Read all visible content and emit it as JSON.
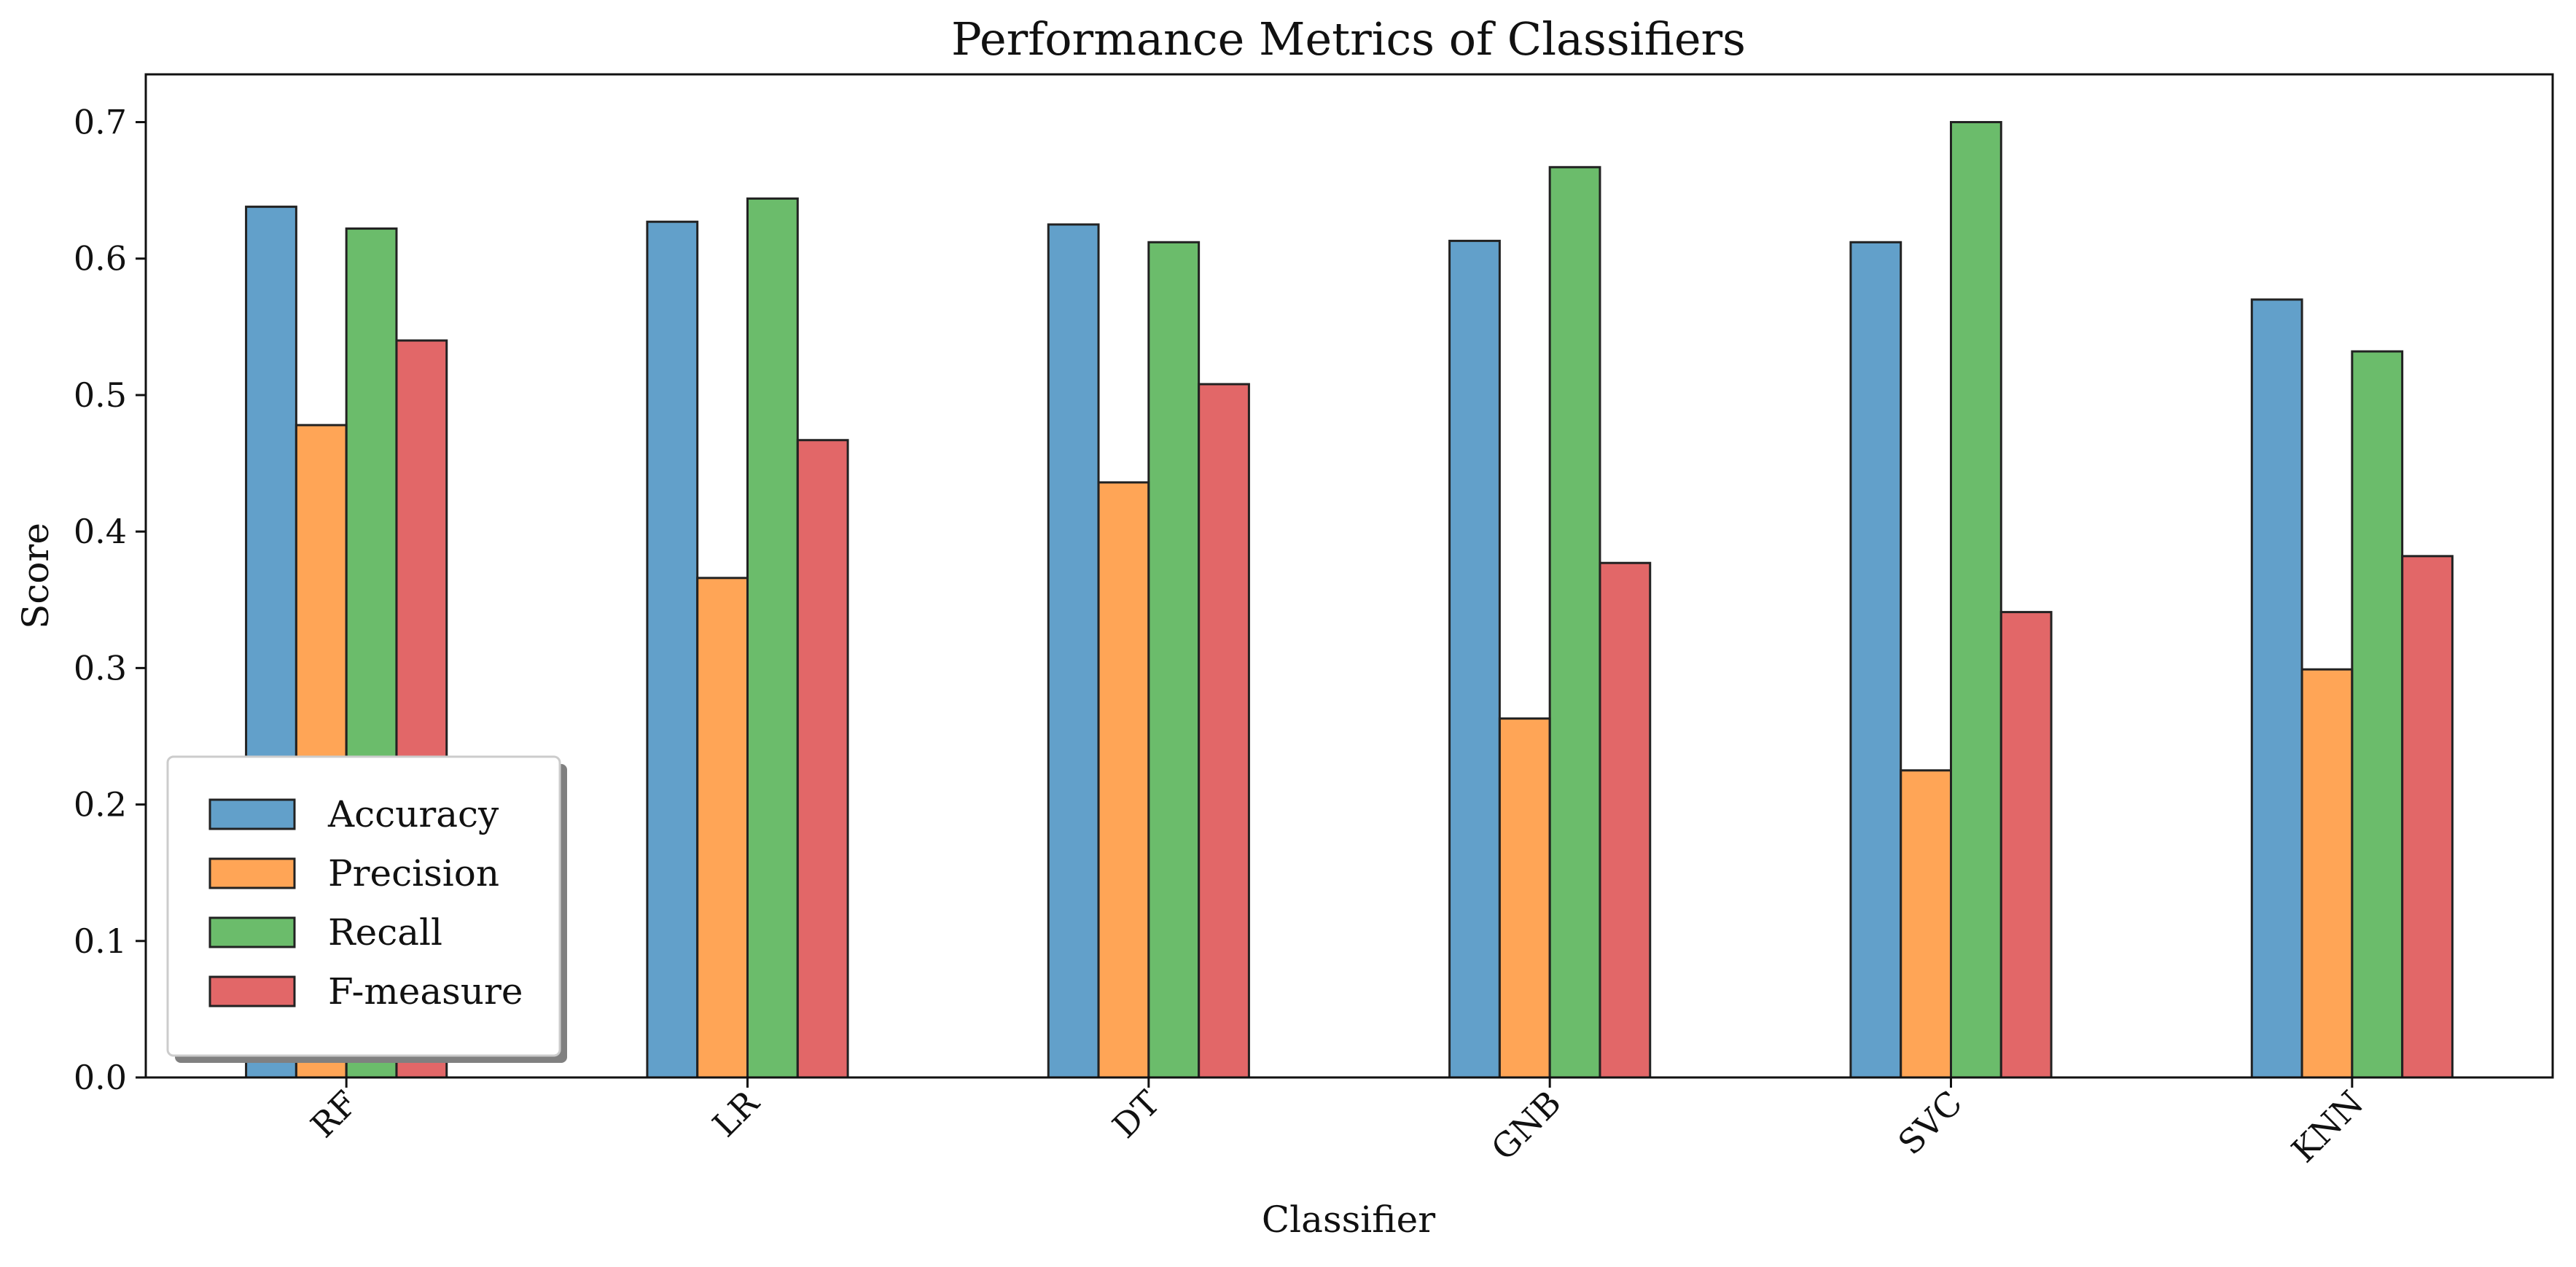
{
  "chart_data": {
    "type": "bar",
    "title": "Performance Metrics of Classifiers",
    "xlabel": "Classifier",
    "ylabel": "Score",
    "categories": [
      "RF",
      "LR",
      "DT",
      "GNB",
      "SVC",
      "KNN"
    ],
    "series": [
      {
        "name": "Accuracy",
        "color": "#1f77b4",
        "values": [
          0.638,
          0.627,
          0.625,
          0.613,
          0.612,
          0.57
        ]
      },
      {
        "name": "Precision",
        "color": "#ff7f0e",
        "values": [
          0.478,
          0.366,
          0.436,
          0.263,
          0.225,
          0.299
        ]
      },
      {
        "name": "Recall",
        "color": "#2ca02c",
        "values": [
          0.622,
          0.644,
          0.612,
          0.667,
          0.7,
          0.532
        ]
      },
      {
        "name": "F-measure",
        "color": "#d62728",
        "values": [
          0.54,
          0.467,
          0.508,
          0.377,
          0.341,
          0.382
        ]
      }
    ],
    "ylim": [
      0,
      0.735
    ],
    "yticks": [
      "0.0",
      "0.1",
      "0.2",
      "0.3",
      "0.4",
      "0.5",
      "0.6",
      "0.7"
    ],
    "ytick_values": [
      0,
      0.1,
      0.2,
      0.3,
      0.4,
      0.5,
      0.6,
      0.7
    ],
    "grid": false,
    "legend_position": "lower-left"
  }
}
